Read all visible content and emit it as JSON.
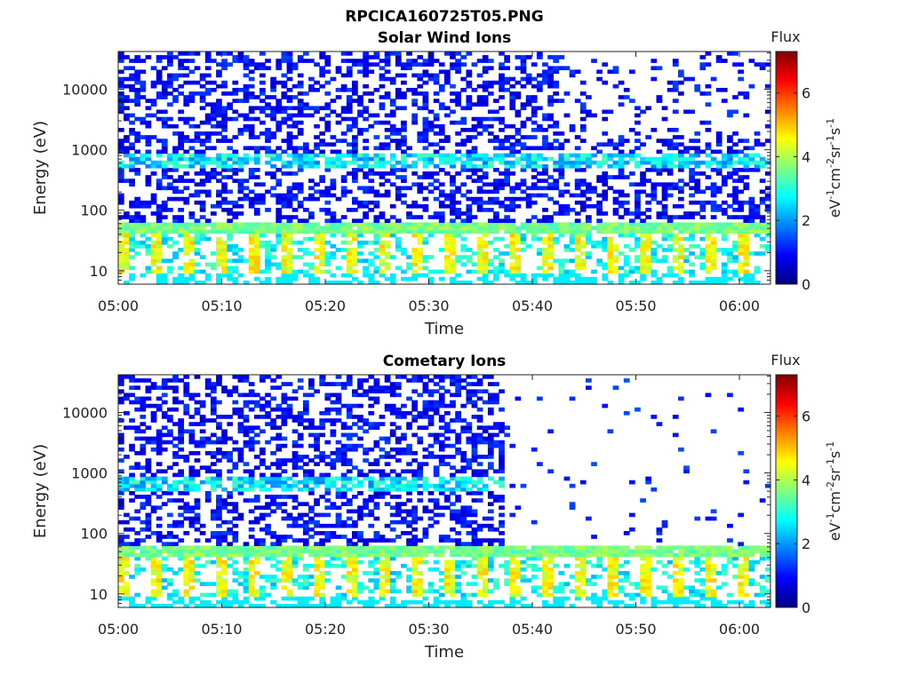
{
  "figure_title": "RPCICA160725T05.PNG",
  "chart_data": [
    {
      "type": "heatmap",
      "title": "Solar Wind Ions",
      "xlabel": "Time",
      "ylabel": "Energy (eV)",
      "x_ticks": [
        "05:00",
        "05:10",
        "05:20",
        "05:30",
        "05:40",
        "05:50",
        "06:00"
      ],
      "x_range": [
        "05:00",
        "06:03"
      ],
      "y_scale": "log",
      "y_ticks": [
        "10",
        "100",
        "1000",
        "10000"
      ],
      "y_range": [
        6,
        42000
      ],
      "colorbar": {
        "label": "Flux",
        "unit": "eV-1cm-2sr-1s-1",
        "ticks": [
          "0",
          "2",
          "4",
          "6"
        ],
        "range": [
          0,
          7.3
        ]
      },
      "features": {
        "cometary_cutoff_time": null
      }
    },
    {
      "type": "heatmap",
      "title": "Cometary Ions",
      "xlabel": "Time",
      "ylabel": "Energy (eV)",
      "x_ticks": [
        "05:00",
        "05:10",
        "05:20",
        "05:30",
        "05:40",
        "05:50",
        "06:00"
      ],
      "x_range": [
        "05:00",
        "06:03"
      ],
      "y_scale": "log",
      "y_ticks": [
        "10",
        "100",
        "1000",
        "10000"
      ],
      "y_range": [
        6,
        42000
      ],
      "colorbar": {
        "label": "Flux",
        "unit": "eV-1cm-2sr-1s-1",
        "ticks": [
          "0",
          "2",
          "4",
          "6"
        ],
        "range": [
          0,
          7.3
        ]
      },
      "features": {
        "cometary_cutoff_time": "05:37"
      }
    }
  ],
  "colors": {
    "axis": "#222222",
    "background": "#ffffff"
  }
}
